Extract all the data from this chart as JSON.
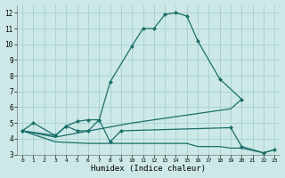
{
  "background_color": "#cce9e7",
  "grid_color": "#aad4d1",
  "line_color": "#1a6e68",
  "xlabel": "Humidex (Indice chaleur)",
  "xlim": [
    -0.5,
    23.5
  ],
  "ylim": [
    3,
    12.5
  ],
  "yticks": [
    3,
    4,
    5,
    6,
    7,
    8,
    9,
    10,
    11,
    12
  ],
  "xticks": [
    0,
    1,
    2,
    3,
    4,
    5,
    6,
    7,
    8,
    9,
    10,
    11,
    12,
    13,
    14,
    15,
    16,
    17,
    18,
    19,
    20,
    21,
    22,
    23
  ],
  "series": {
    "main": {
      "x": [
        0,
        1,
        3,
        4,
        5,
        6,
        7,
        8,
        10,
        11,
        12,
        13,
        14,
        15,
        16,
        18,
        20
      ],
      "y": [
        4.5,
        5.0,
        4.2,
        4.8,
        5.1,
        5.2,
        5.2,
        7.6,
        9.9,
        11.0,
        11.0,
        11.9,
        12.0,
        11.8,
        10.2,
        7.8,
        6.5
      ]
    },
    "flat_bottom": {
      "x": [
        0,
        3,
        6,
        7,
        8,
        9,
        10,
        11,
        12,
        13,
        14,
        15,
        16,
        17,
        18,
        19,
        20,
        22,
        23
      ],
      "y": [
        4.5,
        3.8,
        3.7,
        3.7,
        3.7,
        3.7,
        3.7,
        3.7,
        3.7,
        3.7,
        3.7,
        3.7,
        3.5,
        3.5,
        3.5,
        3.4,
        3.4,
        3.1,
        3.3
      ]
    },
    "rising": {
      "x": [
        0,
        3,
        10,
        11,
        12,
        13,
        14,
        15,
        16,
        17,
        18,
        19,
        20
      ],
      "y": [
        4.5,
        4.1,
        5.0,
        5.1,
        5.2,
        5.3,
        5.4,
        5.5,
        5.6,
        5.7,
        5.8,
        5.9,
        6.5
      ]
    },
    "scatter": {
      "x": [
        0,
        3,
        4,
        5,
        6,
        7,
        8,
        9,
        19,
        20,
        22,
        23
      ],
      "y": [
        4.5,
        4.2,
        4.8,
        4.5,
        4.5,
        5.2,
        3.8,
        4.5,
        4.7,
        3.5,
        3.1,
        3.3
      ]
    }
  }
}
